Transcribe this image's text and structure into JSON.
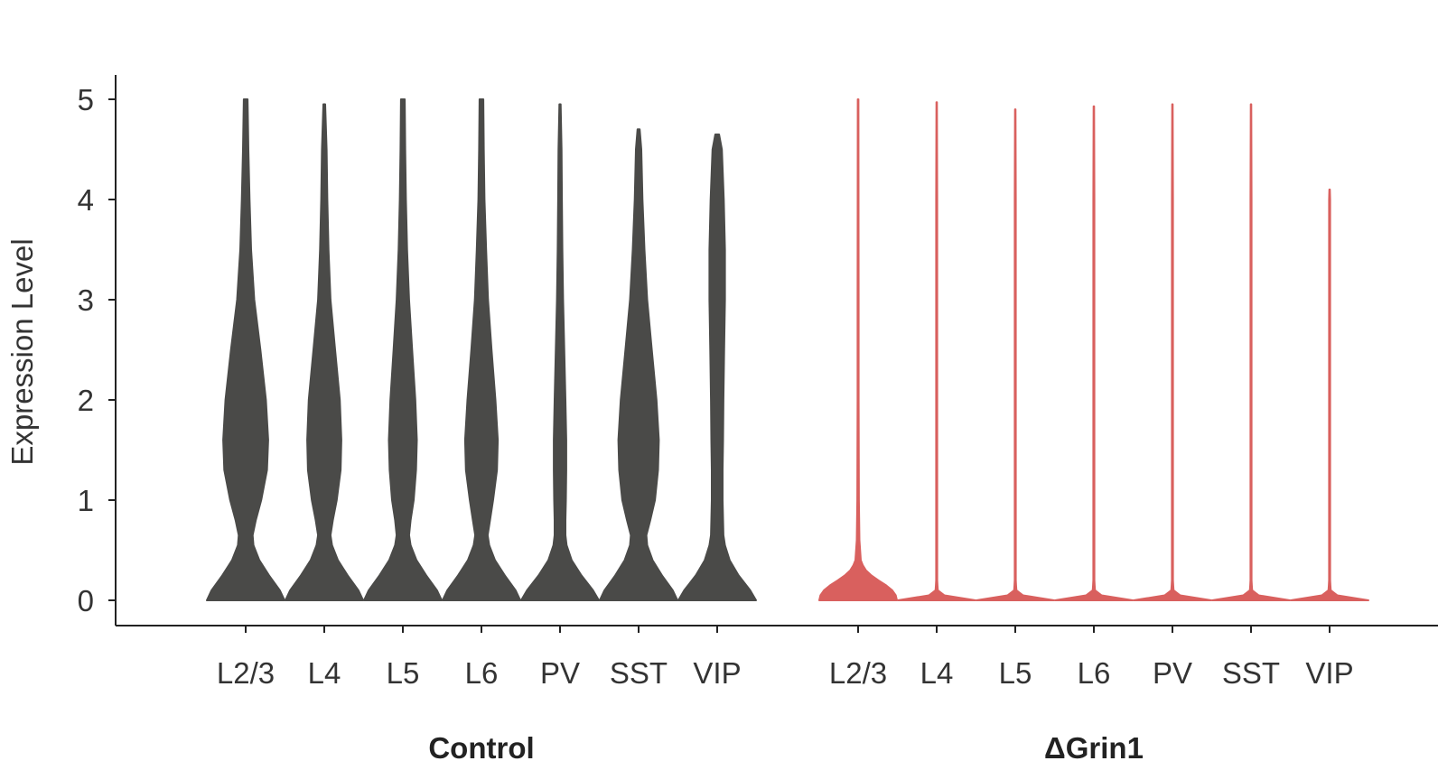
{
  "chart_data": {
    "type": "violin",
    "title": "",
    "ylabel": "Expression Level",
    "ylim": [
      0,
      5
    ],
    "yticks": [
      "0",
      "1",
      "2",
      "3",
      "4",
      "5"
    ],
    "grid": false,
    "groups": [
      {
        "name": "Control",
        "color": "#4a4a48",
        "categories": [
          "L2/3",
          "L4",
          "L5",
          "L6",
          "PV",
          "SST",
          "VIP"
        ],
        "max": [
          5.0,
          4.95,
          5.0,
          5.0,
          4.95,
          4.7,
          4.65
        ],
        "profile_y": [
          0,
          0.1,
          0.25,
          0.4,
          0.55,
          0.65,
          0.8,
          1.0,
          1.3,
          1.6,
          2.0,
          2.5,
          3.0,
          3.5,
          4.0,
          4.5,
          5.0
        ],
        "profiles": [
          [
            1.0,
            0.88,
            0.6,
            0.35,
            0.2,
            0.18,
            0.26,
            0.4,
            0.55,
            0.58,
            0.52,
            0.38,
            0.22,
            0.14,
            0.1,
            0.07,
            0.05
          ],
          [
            1.0,
            0.88,
            0.6,
            0.35,
            0.2,
            0.16,
            0.22,
            0.32,
            0.42,
            0.44,
            0.4,
            0.28,
            0.16,
            0.11,
            0.08,
            0.06,
            0.05
          ],
          [
            1.0,
            0.88,
            0.6,
            0.35,
            0.2,
            0.16,
            0.2,
            0.28,
            0.34,
            0.36,
            0.32,
            0.24,
            0.16,
            0.11,
            0.08,
            0.06,
            0.05
          ],
          [
            1.0,
            0.88,
            0.6,
            0.35,
            0.2,
            0.16,
            0.22,
            0.3,
            0.4,
            0.42,
            0.36,
            0.26,
            0.17,
            0.12,
            0.08,
            0.06,
            0.05
          ],
          [
            1.0,
            0.85,
            0.55,
            0.3,
            0.17,
            0.14,
            0.14,
            0.15,
            0.16,
            0.16,
            0.14,
            0.11,
            0.08,
            0.06,
            0.05,
            0.04,
            0.03
          ],
          [
            1.0,
            0.88,
            0.6,
            0.36,
            0.22,
            0.2,
            0.3,
            0.42,
            0.5,
            0.52,
            0.46,
            0.34,
            0.22,
            0.15,
            0.1,
            0.07,
            0.05
          ],
          [
            1.0,
            0.85,
            0.55,
            0.32,
            0.2,
            0.16,
            0.15,
            0.14,
            0.14,
            0.15,
            0.16,
            0.18,
            0.2,
            0.2,
            0.17,
            0.12,
            0.08
          ]
        ]
      },
      {
        "name": "ΔGrin1",
        "color": "#d9605e",
        "categories": [
          "L2/3",
          "L4",
          "L5",
          "L6",
          "PV",
          "SST",
          "VIP"
        ],
        "max": [
          5.0,
          4.97,
          4.9,
          4.93,
          4.95,
          4.95,
          4.1
        ],
        "profile_y": [
          0,
          0.05,
          0.1,
          0.15,
          0.2,
          0.25,
          0.3,
          0.35,
          0.4,
          0.6,
          1.0,
          2.0,
          3.0,
          4.0,
          5.0
        ],
        "profiles": [
          [
            1.0,
            0.97,
            0.88,
            0.72,
            0.52,
            0.34,
            0.2,
            0.12,
            0.07,
            0.035,
            0.02,
            0.015,
            0.013,
            0.012,
            0.01
          ],
          [
            1.0,
            0.2,
            0.03,
            0.02,
            0.015,
            0.015,
            0.015,
            0.015,
            0.015,
            0.015,
            0.015,
            0.015,
            0.015,
            0.015,
            0.015
          ],
          [
            1.0,
            0.2,
            0.03,
            0.02,
            0.015,
            0.015,
            0.015,
            0.015,
            0.015,
            0.015,
            0.015,
            0.015,
            0.015,
            0.015,
            0.015
          ],
          [
            1.0,
            0.2,
            0.03,
            0.02,
            0.015,
            0.015,
            0.015,
            0.015,
            0.015,
            0.015,
            0.015,
            0.015,
            0.015,
            0.015,
            0.015
          ],
          [
            1.0,
            0.2,
            0.03,
            0.02,
            0.015,
            0.015,
            0.015,
            0.015,
            0.015,
            0.015,
            0.015,
            0.015,
            0.015,
            0.015,
            0.015
          ],
          [
            1.0,
            0.2,
            0.03,
            0.02,
            0.015,
            0.015,
            0.015,
            0.015,
            0.015,
            0.015,
            0.015,
            0.015,
            0.015,
            0.015,
            0.015
          ],
          [
            1.0,
            0.2,
            0.03,
            0.02,
            0.015,
            0.015,
            0.015,
            0.015,
            0.015,
            0.015,
            0.015,
            0.015,
            0.015,
            0.015,
            0.015
          ]
        ]
      }
    ]
  }
}
